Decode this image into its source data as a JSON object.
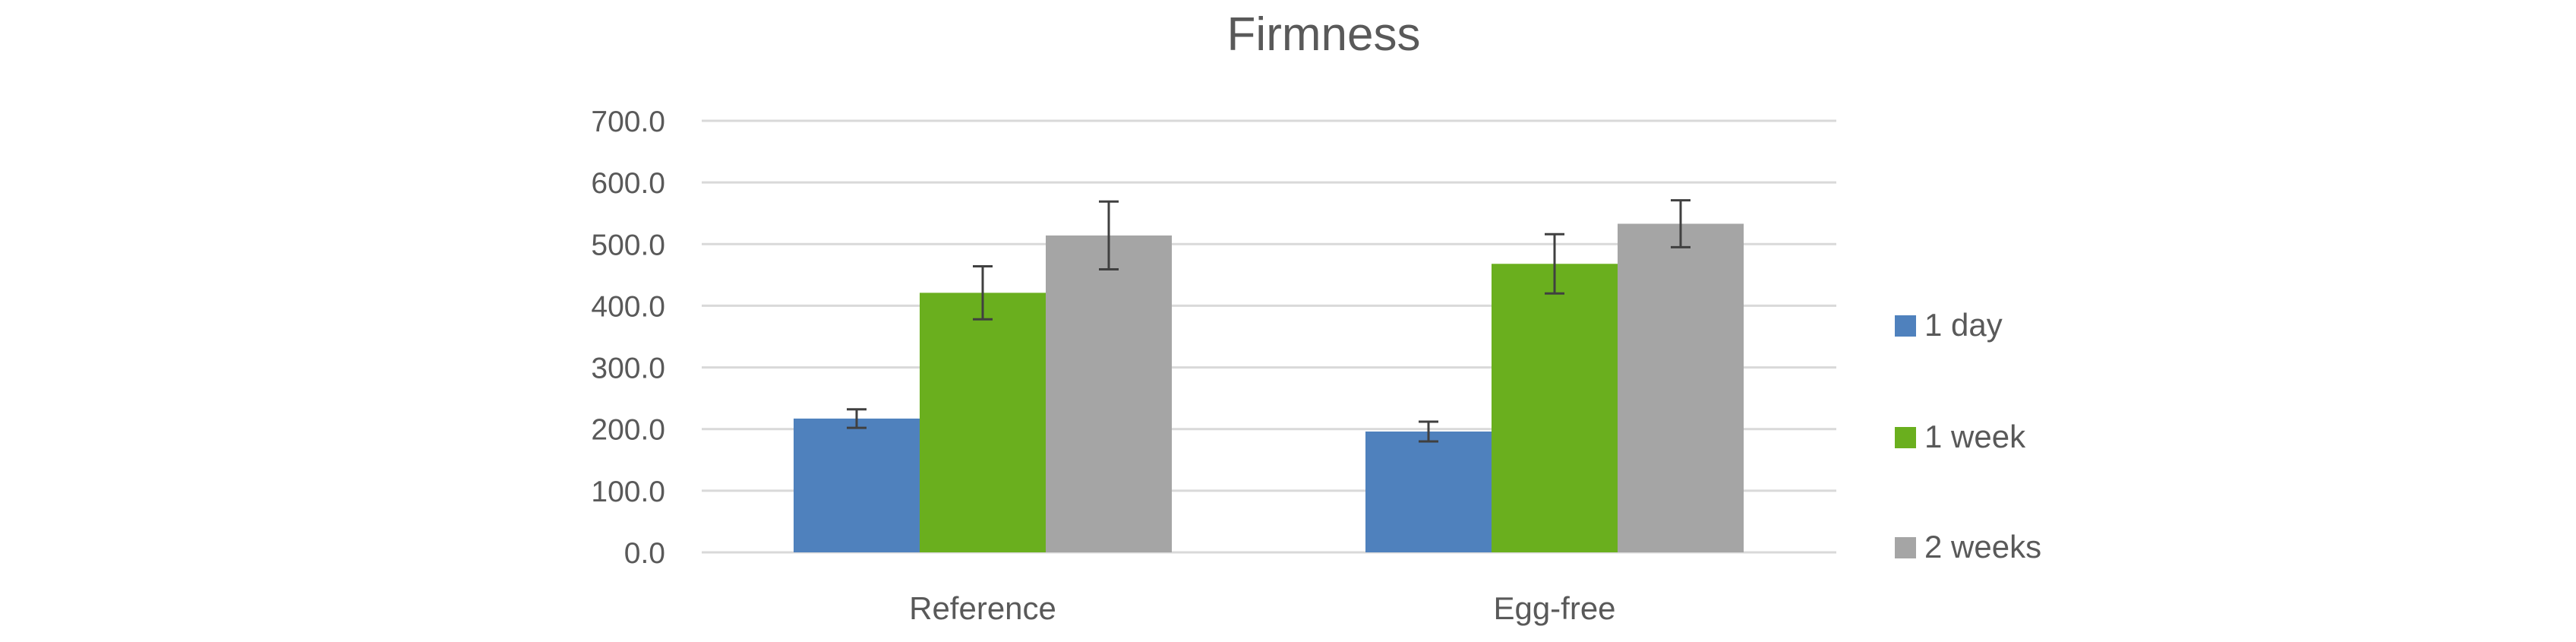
{
  "chart_data": {
    "type": "bar",
    "title": "Firmness",
    "xlabel": "",
    "ylabel": "",
    "categories": [
      "Reference",
      "Egg-free"
    ],
    "series": [
      {
        "name": "1 day",
        "color": "#4F81BD",
        "values": [
          217,
          196
        ],
        "errors": [
          15,
          16
        ]
      },
      {
        "name": "1 week",
        "color": "#6AAF1E",
        "values": [
          421,
          468
        ],
        "errors": [
          43,
          48
        ]
      },
      {
        "name": "2 weeks",
        "color": "#A5A5A5",
        "values": [
          514,
          533
        ],
        "errors": [
          55,
          38
        ]
      }
    ],
    "ylim": [
      0,
      700
    ],
    "yticks": [
      "0.0",
      "100.0",
      "200.0",
      "300.0",
      "400.0",
      "500.0",
      "600.0",
      "700.0"
    ],
    "grid": true,
    "legend_position": "right",
    "colors": {
      "gridline": "#D9D9D9",
      "text": "#595959",
      "error_bar": "#404040"
    }
  }
}
